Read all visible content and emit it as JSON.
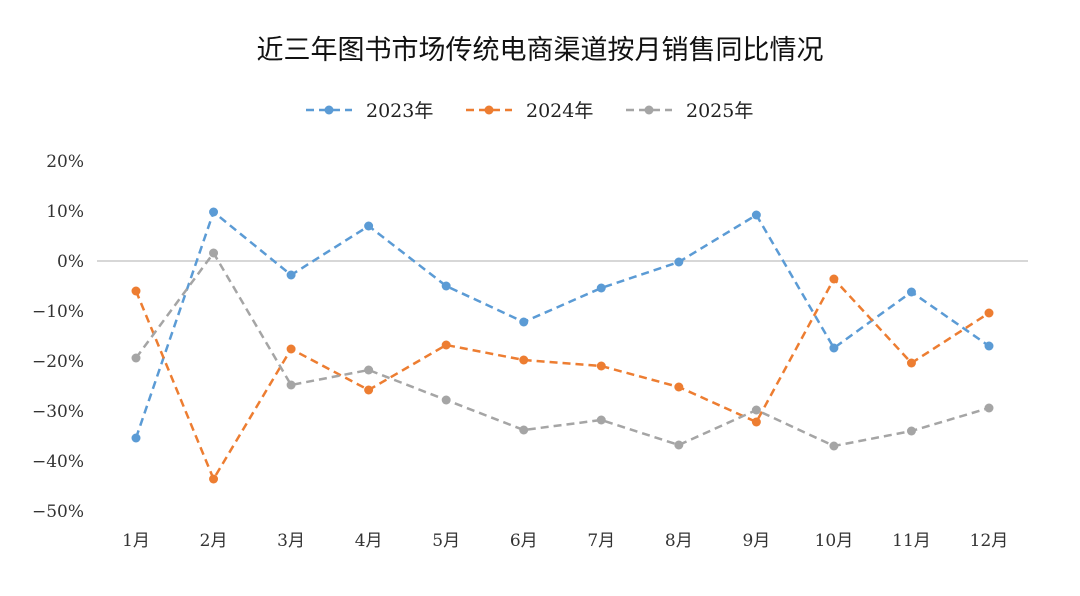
{
  "chart_data": {
    "type": "line",
    "title": "近三年图书市场传统电商渠道按月销售同比情况",
    "categories": [
      "1月",
      "2月",
      "3月",
      "4月",
      "5月",
      "6月",
      "7月",
      "8月",
      "9月",
      "10月",
      "11月",
      "12月"
    ],
    "ylim": [
      -50,
      20
    ],
    "yticks": [
      20,
      10,
      0,
      -10,
      -20,
      -30,
      -40,
      -50
    ],
    "ytick_labels": [
      "20%",
      "10%",
      "0%",
      "−10%",
      "−20%",
      "−30%",
      "−40%",
      "−50%"
    ],
    "grid": false,
    "zero_line": true,
    "legend_position": "top",
    "line_style": "dashed with markers",
    "series": [
      {
        "name": "2023年",
        "color": "#5b9bd5",
        "values": [
          -35.4,
          9.8,
          -2.8,
          7.0,
          -5.0,
          -12.2,
          -5.4,
          -0.2,
          9.2,
          -17.4,
          -6.2,
          -17.0
        ]
      },
      {
        "name": "2024年",
        "color": "#ed7d31",
        "values": [
          -6.0,
          -43.6,
          -17.6,
          -25.8,
          -16.8,
          -19.8,
          -21.0,
          -25.2,
          -32.2,
          -3.6,
          -20.4,
          -10.4
        ]
      },
      {
        "name": "2025年",
        "color": "#a5a5a5",
        "values": [
          -19.4,
          1.6,
          -24.8,
          -21.8,
          -27.8,
          -33.8,
          -31.8,
          -36.8,
          -29.8,
          -37.0,
          -34.0,
          -29.4
        ]
      }
    ]
  }
}
